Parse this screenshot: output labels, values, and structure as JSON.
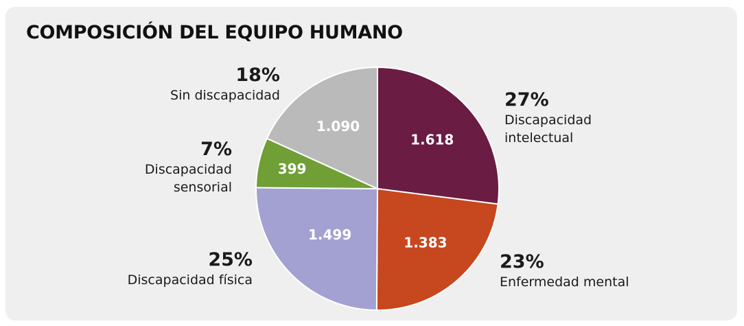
{
  "chart_data": {
    "type": "pie",
    "title": "COMPOSICIÓN DEL EQUIPO HUMANO",
    "categories": [
      "Discapacidad intelectual",
      "Enfermedad mental",
      "Discapacidad física",
      "Discapacidad sensorial",
      "Sin discapacidad"
    ],
    "values": [
      1618,
      1383,
      1499,
      399,
      1090
    ],
    "value_labels": [
      "1.618",
      "1.383",
      "1.499",
      "399",
      "1.090"
    ],
    "percent_labels": [
      "27%",
      "23%",
      "25%",
      "7%",
      "18%"
    ],
    "colors": [
      "#6a1c42",
      "#c7471f",
      "#a3a0d2",
      "#6f9f35",
      "#bababa"
    ]
  }
}
